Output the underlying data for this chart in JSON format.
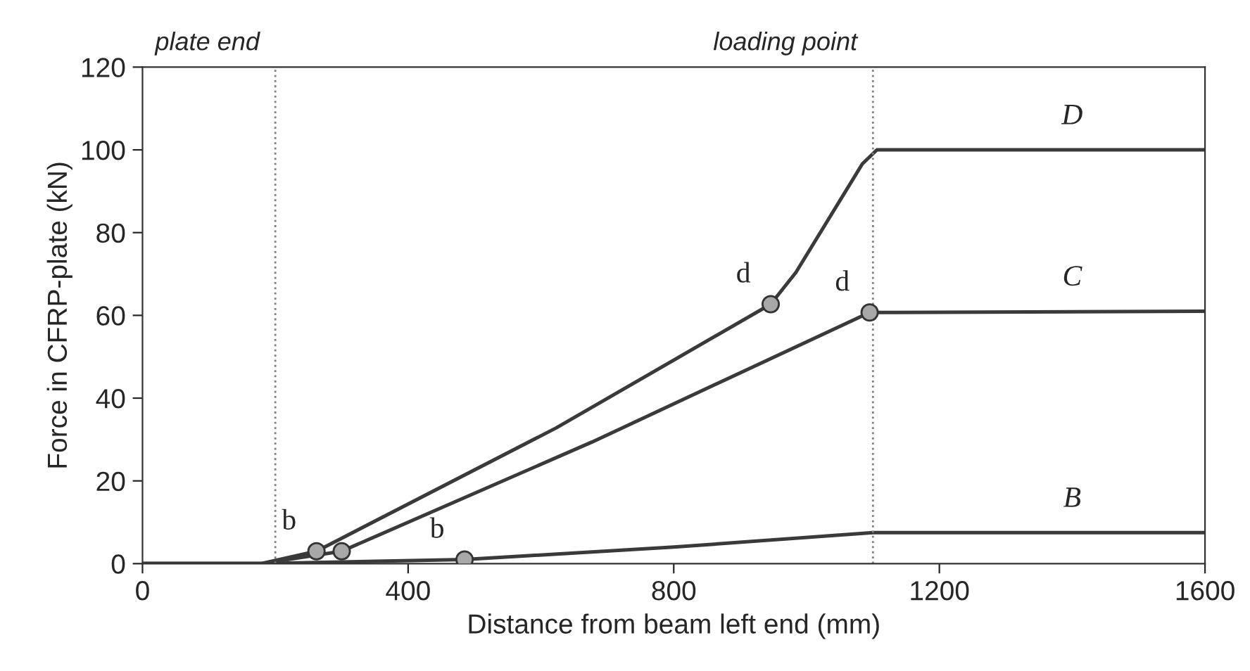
{
  "chart_data": {
    "type": "line",
    "xlabel": "Distance from beam left end (mm)",
    "ylabel": "Force in CFRP-plate (kN)",
    "xlim": [
      0,
      1600
    ],
    "xticks": [
      0,
      400,
      800,
      1200,
      1600
    ],
    "ylim": [
      0,
      120
    ],
    "yticks": [
      0,
      20,
      40,
      60,
      80,
      100,
      120
    ],
    "grid": false,
    "legend": false,
    "marker": "none",
    "line_style": "solid",
    "series": [
      {
        "color": "#3a3a3a",
        "x": [
          0,
          178,
          262,
          623,
          946,
          984,
          1084,
          1106,
          1600
        ],
        "values": [
          0,
          0,
          3,
          32.8,
          62.7,
          70.4,
          96.6,
          100,
          100
        ]
      },
      {
        "color": "#3a3a3a",
        "x": [
          0,
          178,
          300,
          677,
          1095,
          1600
        ],
        "values": [
          0,
          0,
          3,
          29.4,
          60.7,
          61
        ]
      },
      {
        "color": "#3a3a3a",
        "x": [
          0,
          180,
          485,
          800,
          1100,
          1600
        ],
        "values": [
          0,
          0,
          1,
          4,
          7.5,
          7.5
        ]
      },
      {
        "type": "scatter",
        "marker": "circle",
        "color": "#a8a8a8",
        "x": [
          262,
          300,
          485,
          946,
          1095
        ],
        "values": [
          3,
          3,
          1,
          62.7,
          60.7
        ]
      }
    ],
    "ref_lines": [
      {
        "axis": "x",
        "value": 200,
        "label": "plate end",
        "line_style": "dotted",
        "color": "#808080"
      },
      {
        "axis": "x",
        "value": 1100,
        "label": "loading point",
        "line_style": "dotted",
        "color": "#808080"
      }
    ],
    "annotations": [
      {
        "text": "D",
        "x": 1400,
        "y": 100
      },
      {
        "text": "C",
        "x": 1400,
        "y": 61
      },
      {
        "text": "B",
        "x": 1400,
        "y": 7.5
      },
      {
        "text": "b",
        "x": 262,
        "y": 3
      },
      {
        "text": "b",
        "x": 485,
        "y": 1
      },
      {
        "text": "d",
        "x": 946,
        "y": 62.7
      },
      {
        "text": "d",
        "x": 1095,
        "y": 60.7
      }
    ]
  }
}
